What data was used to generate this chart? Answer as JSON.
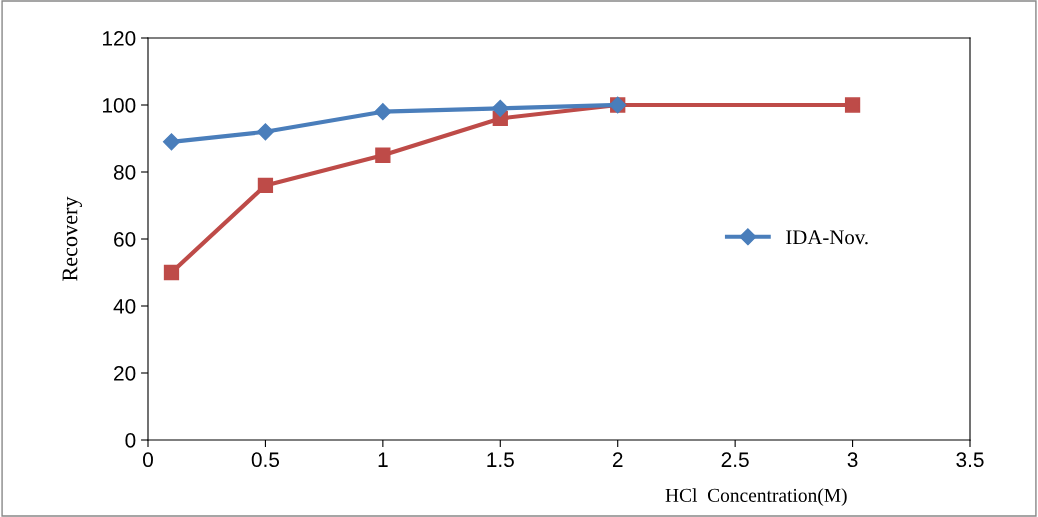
{
  "chart_data": {
    "type": "line",
    "xlabel": "HCl  Concentration(M)",
    "ylabel": "Recovery",
    "xlim": [
      0,
      3.5
    ],
    "xticks": [
      0,
      0.5,
      1,
      1.5,
      2,
      2.5,
      3,
      3.5
    ],
    "ylim": [
      0,
      120
    ],
    "yticks": [
      0,
      20,
      40,
      60,
      80,
      100,
      120
    ],
    "grid": false,
    "legend": "right",
    "series": [
      {
        "name": "IDA-Nov.",
        "color": "#4a7ebb",
        "marker": "diamond",
        "x": [
          0.1,
          0.5,
          1,
          1.5,
          2
        ],
        "values": [
          89,
          92,
          98,
          99,
          100
        ]
      },
      {
        "color": "#be4b48",
        "marker": "square",
        "x": [
          0.1,
          0.5,
          1,
          1.5,
          2,
          3
        ],
        "values": [
          50,
          76,
          85,
          96,
          100,
          100
        ]
      }
    ]
  }
}
